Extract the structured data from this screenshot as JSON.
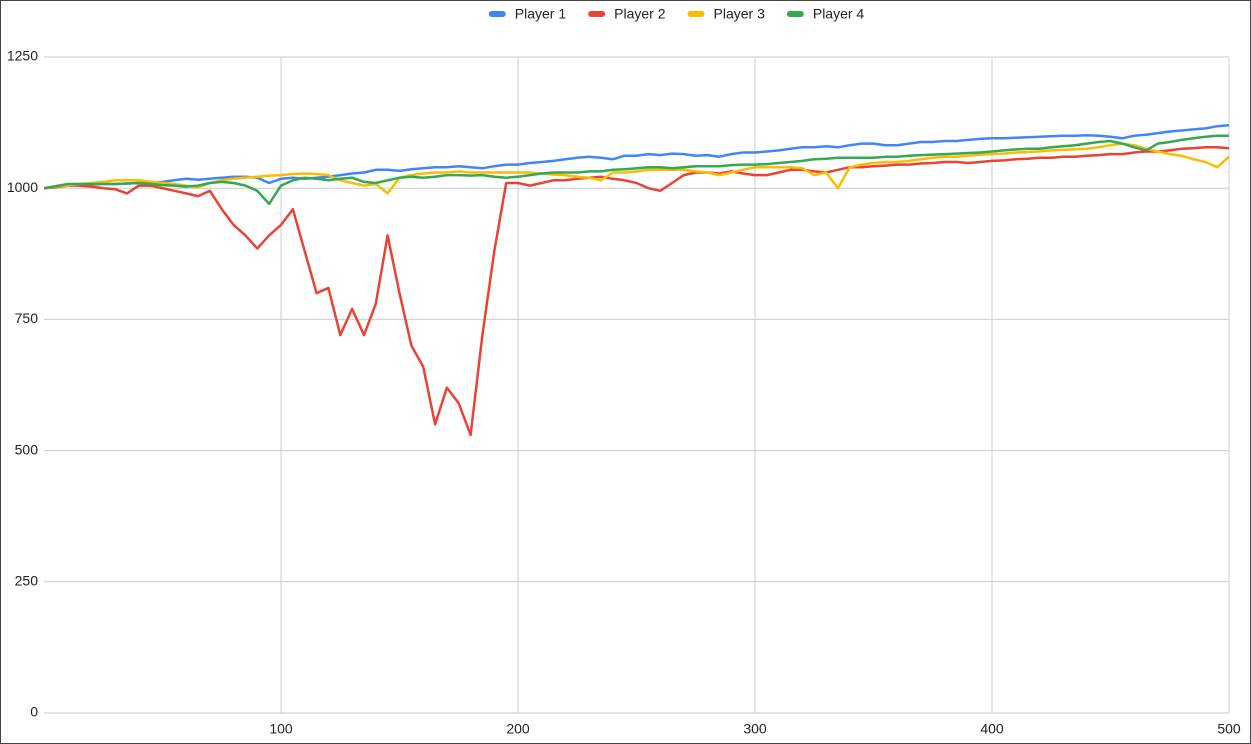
{
  "chart_data": {
    "type": "line",
    "x": [
      0,
      5,
      10,
      15,
      20,
      25,
      30,
      35,
      40,
      45,
      50,
      55,
      60,
      65,
      70,
      75,
      80,
      85,
      90,
      95,
      100,
      105,
      110,
      115,
      120,
      125,
      130,
      135,
      140,
      145,
      150,
      155,
      160,
      165,
      170,
      175,
      180,
      185,
      190,
      195,
      200,
      205,
      210,
      215,
      220,
      225,
      230,
      235,
      240,
      245,
      250,
      255,
      260,
      265,
      270,
      275,
      280,
      285,
      290,
      295,
      300,
      305,
      310,
      315,
      320,
      325,
      330,
      335,
      340,
      345,
      350,
      355,
      360,
      365,
      370,
      375,
      380,
      385,
      390,
      395,
      400,
      405,
      410,
      415,
      420,
      425,
      430,
      435,
      440,
      445,
      450,
      455,
      460,
      465,
      470,
      475,
      480,
      485,
      490,
      495,
      500
    ],
    "series": [
      {
        "name": "Player 1",
        "color": "#4285f4",
        "values": [
          1000,
          1002,
          1005,
          1006,
          1007,
          1008,
          1008,
          1009,
          1010,
          1010,
          1012,
          1015,
          1018,
          1016,
          1018,
          1020,
          1022,
          1022,
          1020,
          1010,
          1018,
          1020,
          1018,
          1020,
          1022,
          1025,
          1028,
          1030,
          1035,
          1035,
          1033,
          1036,
          1038,
          1040,
          1040,
          1042,
          1040,
          1038,
          1042,
          1045,
          1045,
          1048,
          1050,
          1052,
          1055,
          1058,
          1060,
          1058,
          1055,
          1062,
          1062,
          1065,
          1063,
          1066,
          1065,
          1062,
          1063,
          1060,
          1065,
          1068,
          1068,
          1070,
          1072,
          1075,
          1078,
          1078,
          1080,
          1078,
          1082,
          1085,
          1085,
          1082,
          1082,
          1085,
          1088,
          1088,
          1090,
          1090,
          1092,
          1094,
          1095,
          1095,
          1096,
          1097,
          1098,
          1099,
          1100,
          1100,
          1101,
          1100,
          1098,
          1095,
          1100,
          1102,
          1105,
          1108,
          1110,
          1112,
          1114,
          1118,
          1120
        ]
      },
      {
        "name": "Player 2",
        "color": "#ea4335",
        "values": [
          1000,
          1002,
          1005,
          1005,
          1003,
          1000,
          998,
          990,
          1005,
          1005,
          1000,
          995,
          990,
          985,
          995,
          960,
          930,
          910,
          885,
          910,
          930,
          960,
          880,
          800,
          810,
          720,
          770,
          720,
          780,
          910,
          800,
          700,
          660,
          550,
          620,
          590,
          530,
          720,
          880,
          1010,
          1010,
          1005,
          1010,
          1015,
          1015,
          1018,
          1020,
          1022,
          1018,
          1015,
          1010,
          1000,
          995,
          1010,
          1025,
          1030,
          1030,
          1028,
          1032,
          1028,
          1025,
          1025,
          1030,
          1035,
          1035,
          1032,
          1030,
          1035,
          1040,
          1040,
          1042,
          1043,
          1045,
          1045,
          1047,
          1048,
          1050,
          1050,
          1048,
          1050,
          1052,
          1053,
          1055,
          1056,
          1058,
          1058,
          1060,
          1060,
          1062,
          1063,
          1065,
          1065,
          1068,
          1070,
          1070,
          1072,
          1075,
          1076,
          1078,
          1078,
          1076
        ]
      },
      {
        "name": "Player 3",
        "color": "#fbbc04",
        "values": [
          1000,
          1003,
          1005,
          1008,
          1010,
          1012,
          1015,
          1015,
          1015,
          1012,
          1010,
          1008,
          1005,
          1002,
          1010,
          1015,
          1018,
          1020,
          1022,
          1024,
          1025,
          1027,
          1028,
          1027,
          1025,
          1015,
          1010,
          1005,
          1008,
          990,
          1020,
          1025,
          1028,
          1030,
          1030,
          1032,
          1030,
          1030,
          1030,
          1030,
          1030,
          1030,
          1028,
          1026,
          1025,
          1022,
          1020,
          1015,
          1030,
          1030,
          1032,
          1035,
          1035,
          1035,
          1035,
          1032,
          1030,
          1025,
          1030,
          1035,
          1040,
          1040,
          1040,
          1040,
          1038,
          1025,
          1030,
          1000,
          1040,
          1045,
          1048,
          1050,
          1050,
          1052,
          1055,
          1058,
          1060,
          1060,
          1062,
          1064,
          1065,
          1066,
          1068,
          1069,
          1070,
          1072,
          1073,
          1074,
          1075,
          1078,
          1082,
          1085,
          1082,
          1075,
          1070,
          1065,
          1062,
          1055,
          1050,
          1040,
          1060
        ]
      },
      {
        "name": "Player 4",
        "color": "#34a853",
        "values": [
          1000,
          1004,
          1008,
          1008,
          1008,
          1008,
          1008,
          1009,
          1010,
          1008,
          1006,
          1005,
          1003,
          1005,
          1010,
          1012,
          1010,
          1005,
          995,
          970,
          1005,
          1015,
          1020,
          1018,
          1015,
          1018,
          1020,
          1012,
          1010,
          1015,
          1020,
          1022,
          1020,
          1022,
          1025,
          1025,
          1024,
          1025,
          1022,
          1020,
          1022,
          1025,
          1028,
          1030,
          1030,
          1030,
          1032,
          1032,
          1035,
          1036,
          1038,
          1040,
          1040,
          1038,
          1040,
          1042,
          1042,
          1042,
          1044,
          1045,
          1045,
          1046,
          1048,
          1050,
          1052,
          1055,
          1056,
          1058,
          1058,
          1058,
          1058,
          1060,
          1060,
          1062,
          1063,
          1064,
          1065,
          1066,
          1067,
          1068,
          1070,
          1072,
          1074,
          1075,
          1075,
          1078,
          1080,
          1082,
          1085,
          1088,
          1090,
          1085,
          1078,
          1072,
          1085,
          1088,
          1092,
          1095,
          1098,
          1100,
          1100
        ]
      }
    ],
    "xlim": [
      0,
      500
    ],
    "xticks": [
      100,
      200,
      300,
      400,
      500
    ],
    "ylim": [
      0,
      1250
    ],
    "yticks": [
      0,
      250,
      500,
      750,
      1000,
      1250
    ],
    "grid": true,
    "legend": "top"
  }
}
